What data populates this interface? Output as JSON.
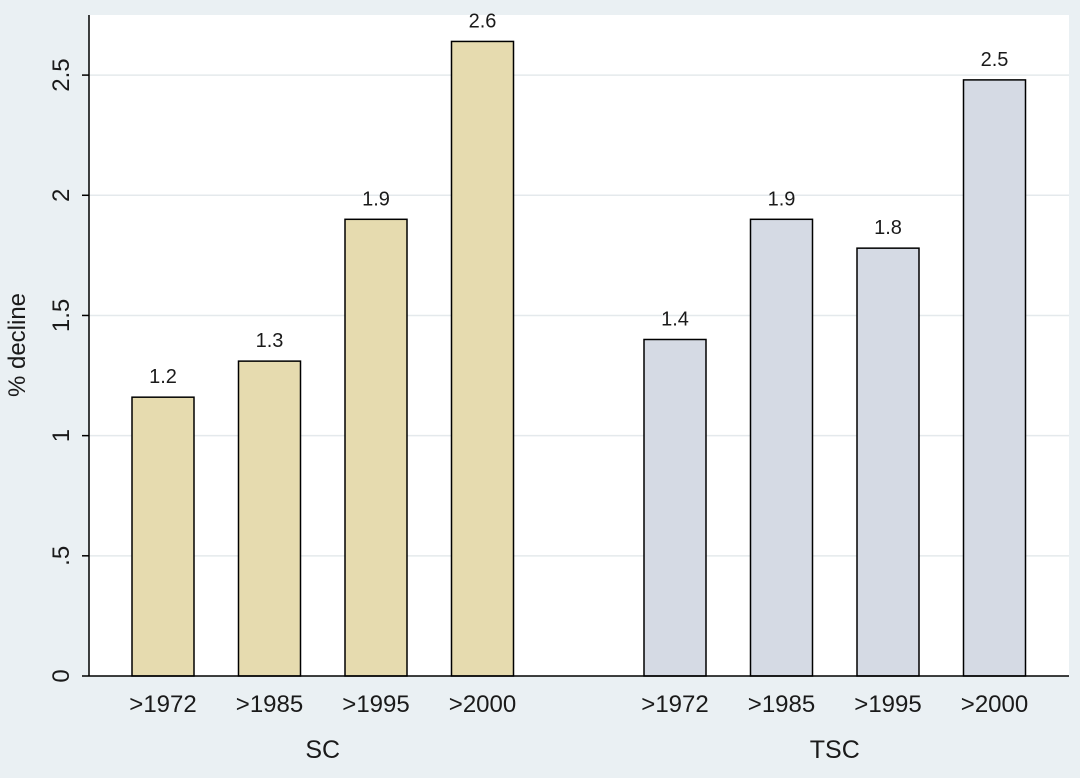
{
  "chart_data": {
    "type": "bar",
    "title": "",
    "ylabel": "% decline",
    "ylim": [
      0,
      2.75
    ],
    "yticks": [
      0,
      0.5,
      1,
      1.5,
      2,
      2.5
    ],
    "ytick_labels": [
      "0",
      ".5",
      "1",
      "1.5",
      "2",
      "2.5"
    ],
    "grid": true,
    "groups": [
      {
        "name": "SC",
        "color": "#e6dbaf",
        "categories": [
          ">1972",
          ">1985",
          ">1995",
          ">2000"
        ],
        "values": [
          1.16,
          1.31,
          1.9,
          2.64
        ],
        "labels": [
          "1.2",
          "1.3",
          "1.9",
          "2.6"
        ]
      },
      {
        "name": "TSC",
        "color": "#d5dae4",
        "categories": [
          ">1972",
          ">1985",
          ">1995",
          ">2000"
        ],
        "values": [
          1.4,
          1.9,
          1.78,
          2.48
        ],
        "labels": [
          "1.4",
          "1.9",
          "1.8",
          "2.5"
        ]
      }
    ]
  }
}
